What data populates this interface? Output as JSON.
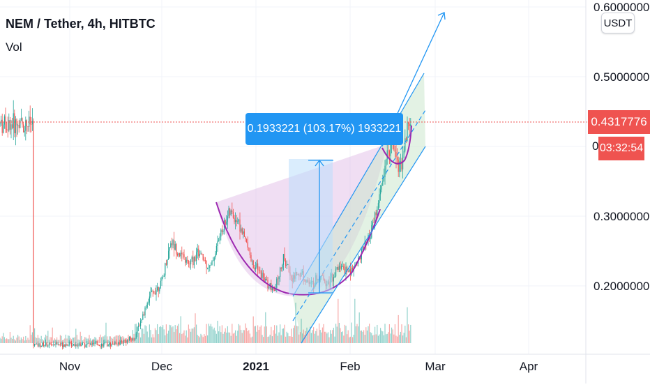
{
  "header": {
    "title": "NEM / Tether, 4h, HITBTC",
    "volume_label": "Vol",
    "currency_button": "USDT"
  },
  "price_tag": {
    "value": "0.4317776",
    "countdown": "03:32:54",
    "partial_label": "0"
  },
  "measurement_label": "0.1933221 (103.17%) 1933221",
  "colors": {
    "up": "#26a69a",
    "down": "#ef5350",
    "drawing_blue": "#2196f3",
    "cup_fill": "#e1bee7",
    "cup_stroke": "#9c27b0",
    "channel_fill": "#c8e6c9"
  },
  "chart_data": {
    "type": "candlestick",
    "title": "NEM / Tether, 4h, HITBTC",
    "y_ticks": [
      "0.6000000",
      "0.5000000",
      "0.3000000",
      "0.2000000"
    ],
    "x_ticks": [
      "Nov",
      "Dec",
      "2021",
      "Feb",
      "Mar",
      "Apr"
    ],
    "ylim": [
      0.08,
      0.62
    ],
    "last_price": 0.4317776,
    "measured_move": {
      "from": 0.185,
      "to": 0.378,
      "change": 0.1933221,
      "percent": "103.17%"
    },
    "price_path": [
      [
        "Oct 20",
        0.115
      ],
      [
        "Oct 31",
        0.117
      ],
      [
        "Nov 14",
        0.116
      ],
      [
        "Nov 22",
        0.124
      ],
      [
        "Nov 27",
        0.185
      ],
      [
        "Dec 01",
        0.205
      ],
      [
        "Dec 04",
        0.265
      ],
      [
        "Dec 07",
        0.245
      ],
      [
        "Dec 10",
        0.23
      ],
      [
        "Dec 13",
        0.248
      ],
      [
        "Dec 17",
        0.225
      ],
      [
        "Dec 20",
        0.27
      ],
      [
        "Dec 23",
        0.305
      ],
      [
        "Dec 26",
        0.295
      ],
      [
        "Dec 29",
        0.26
      ],
      [
        "Dec 31",
        0.23
      ],
      [
        "Jan 03",
        0.215
      ],
      [
        "Jan 07",
        0.19
      ],
      [
        "Jan 10",
        0.24
      ],
      [
        "Jan 13",
        0.212
      ],
      [
        "Jan 16",
        0.22
      ],
      [
        "Jan 19",
        0.2
      ],
      [
        "Jan 22",
        0.215
      ],
      [
        "Jan 25",
        0.205
      ],
      [
        "Jan 28",
        0.225
      ],
      [
        "Feb 01",
        0.22
      ],
      [
        "Feb 04",
        0.24
      ],
      [
        "Feb 07",
        0.265
      ],
      [
        "Feb 10",
        0.31
      ],
      [
        "Feb 12",
        0.36
      ],
      [
        "Feb 14",
        0.4
      ],
      [
        "Feb 15",
        0.41
      ],
      [
        "Feb 17",
        0.37
      ],
      [
        "Feb 18",
        0.38
      ],
      [
        "Feb 20",
        0.43
      ],
      [
        "Feb 21",
        0.4318
      ]
    ],
    "grid": true,
    "legend": "top-left"
  }
}
